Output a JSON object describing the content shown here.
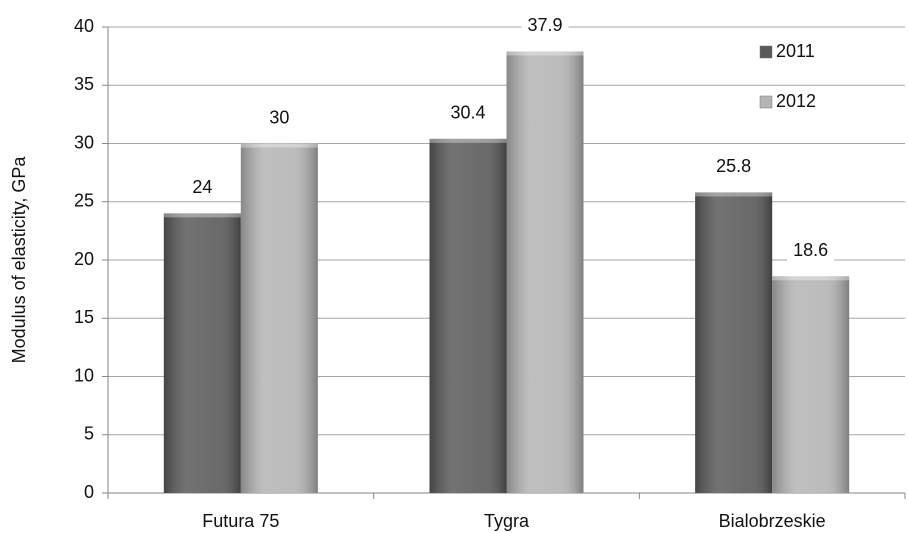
{
  "chart_data": {
    "type": "bar",
    "y_label": "Modulus of elasticity, GPa",
    "categories": [
      "Futura 75",
      "Tygra",
      "Bialobrzeskie"
    ],
    "series": [
      {
        "name": "2011",
        "color": "#5a5a5a",
        "values": [
          24,
          30.4,
          25.8
        ]
      },
      {
        "name": "2012",
        "color": "#b4b4b4",
        "values": [
          30,
          37.9,
          18.6
        ]
      }
    ],
    "ylim": [
      0,
      40
    ],
    "yticks": [
      0,
      5,
      10,
      15,
      20,
      25,
      30,
      35,
      40
    ],
    "grid": true,
    "legend": "top-right"
  }
}
